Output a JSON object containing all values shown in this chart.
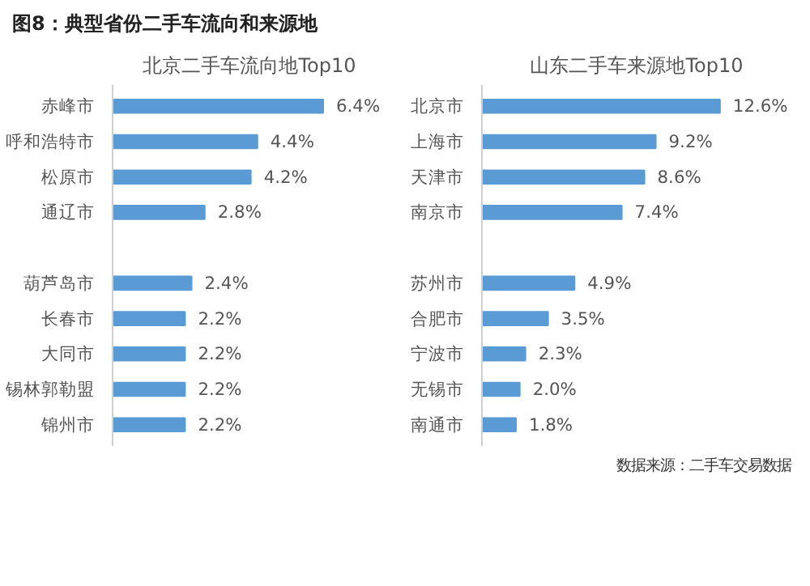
{
  "chart_data": [
    {
      "type": "bar",
      "orientation": "horizontal",
      "title": "图8：典型省份二手车流向和来源地",
      "subtitle": "北京二手车流向地Top10",
      "categories": [
        "赤峰市",
        "呼和浩特市",
        "松原市",
        "通辽市",
        null,
        "葫芦岛市",
        "长春市",
        "大同市",
        "锡林郭勒盟",
        "锦州市"
      ],
      "series": [
        {
          "color": "#5b9bd5",
          "values": [
            6.4,
            4.4,
            4.2,
            2.8,
            null,
            2.4,
            2.2,
            2.2,
            2.2,
            2.2
          ],
          "value_labels": [
            "6.4%",
            "4.4%",
            "4.2%",
            "2.8%",
            null,
            "2.4%",
            "2.2%",
            "2.2%",
            "2.2%",
            "2.2%"
          ]
        }
      ],
      "grid": false
    },
    {
      "type": "bar",
      "orientation": "horizontal",
      "title": "山东二手车来源地Top10",
      "categories": [
        "北京市",
        "上海市",
        "天津市",
        "南京市",
        null,
        "苏州市",
        "合肥市",
        "宁波市",
        "无锡市",
        "南通市"
      ],
      "series": [
        {
          "color": "#5b9bd5",
          "values": [
            12.6,
            9.2,
            8.6,
            7.4,
            null,
            4.9,
            3.5,
            2.3,
            2.0,
            1.8
          ],
          "value_labels": [
            "12.6%",
            "9.2%",
            "8.6%",
            "7.4%",
            null,
            "4.9%",
            "3.5%",
            "2.3%",
            "2.0%",
            "1.8%"
          ]
        }
      ],
      "grid": false,
      "annotations": [
        "数据来源：二手车交易数据"
      ]
    }
  ]
}
